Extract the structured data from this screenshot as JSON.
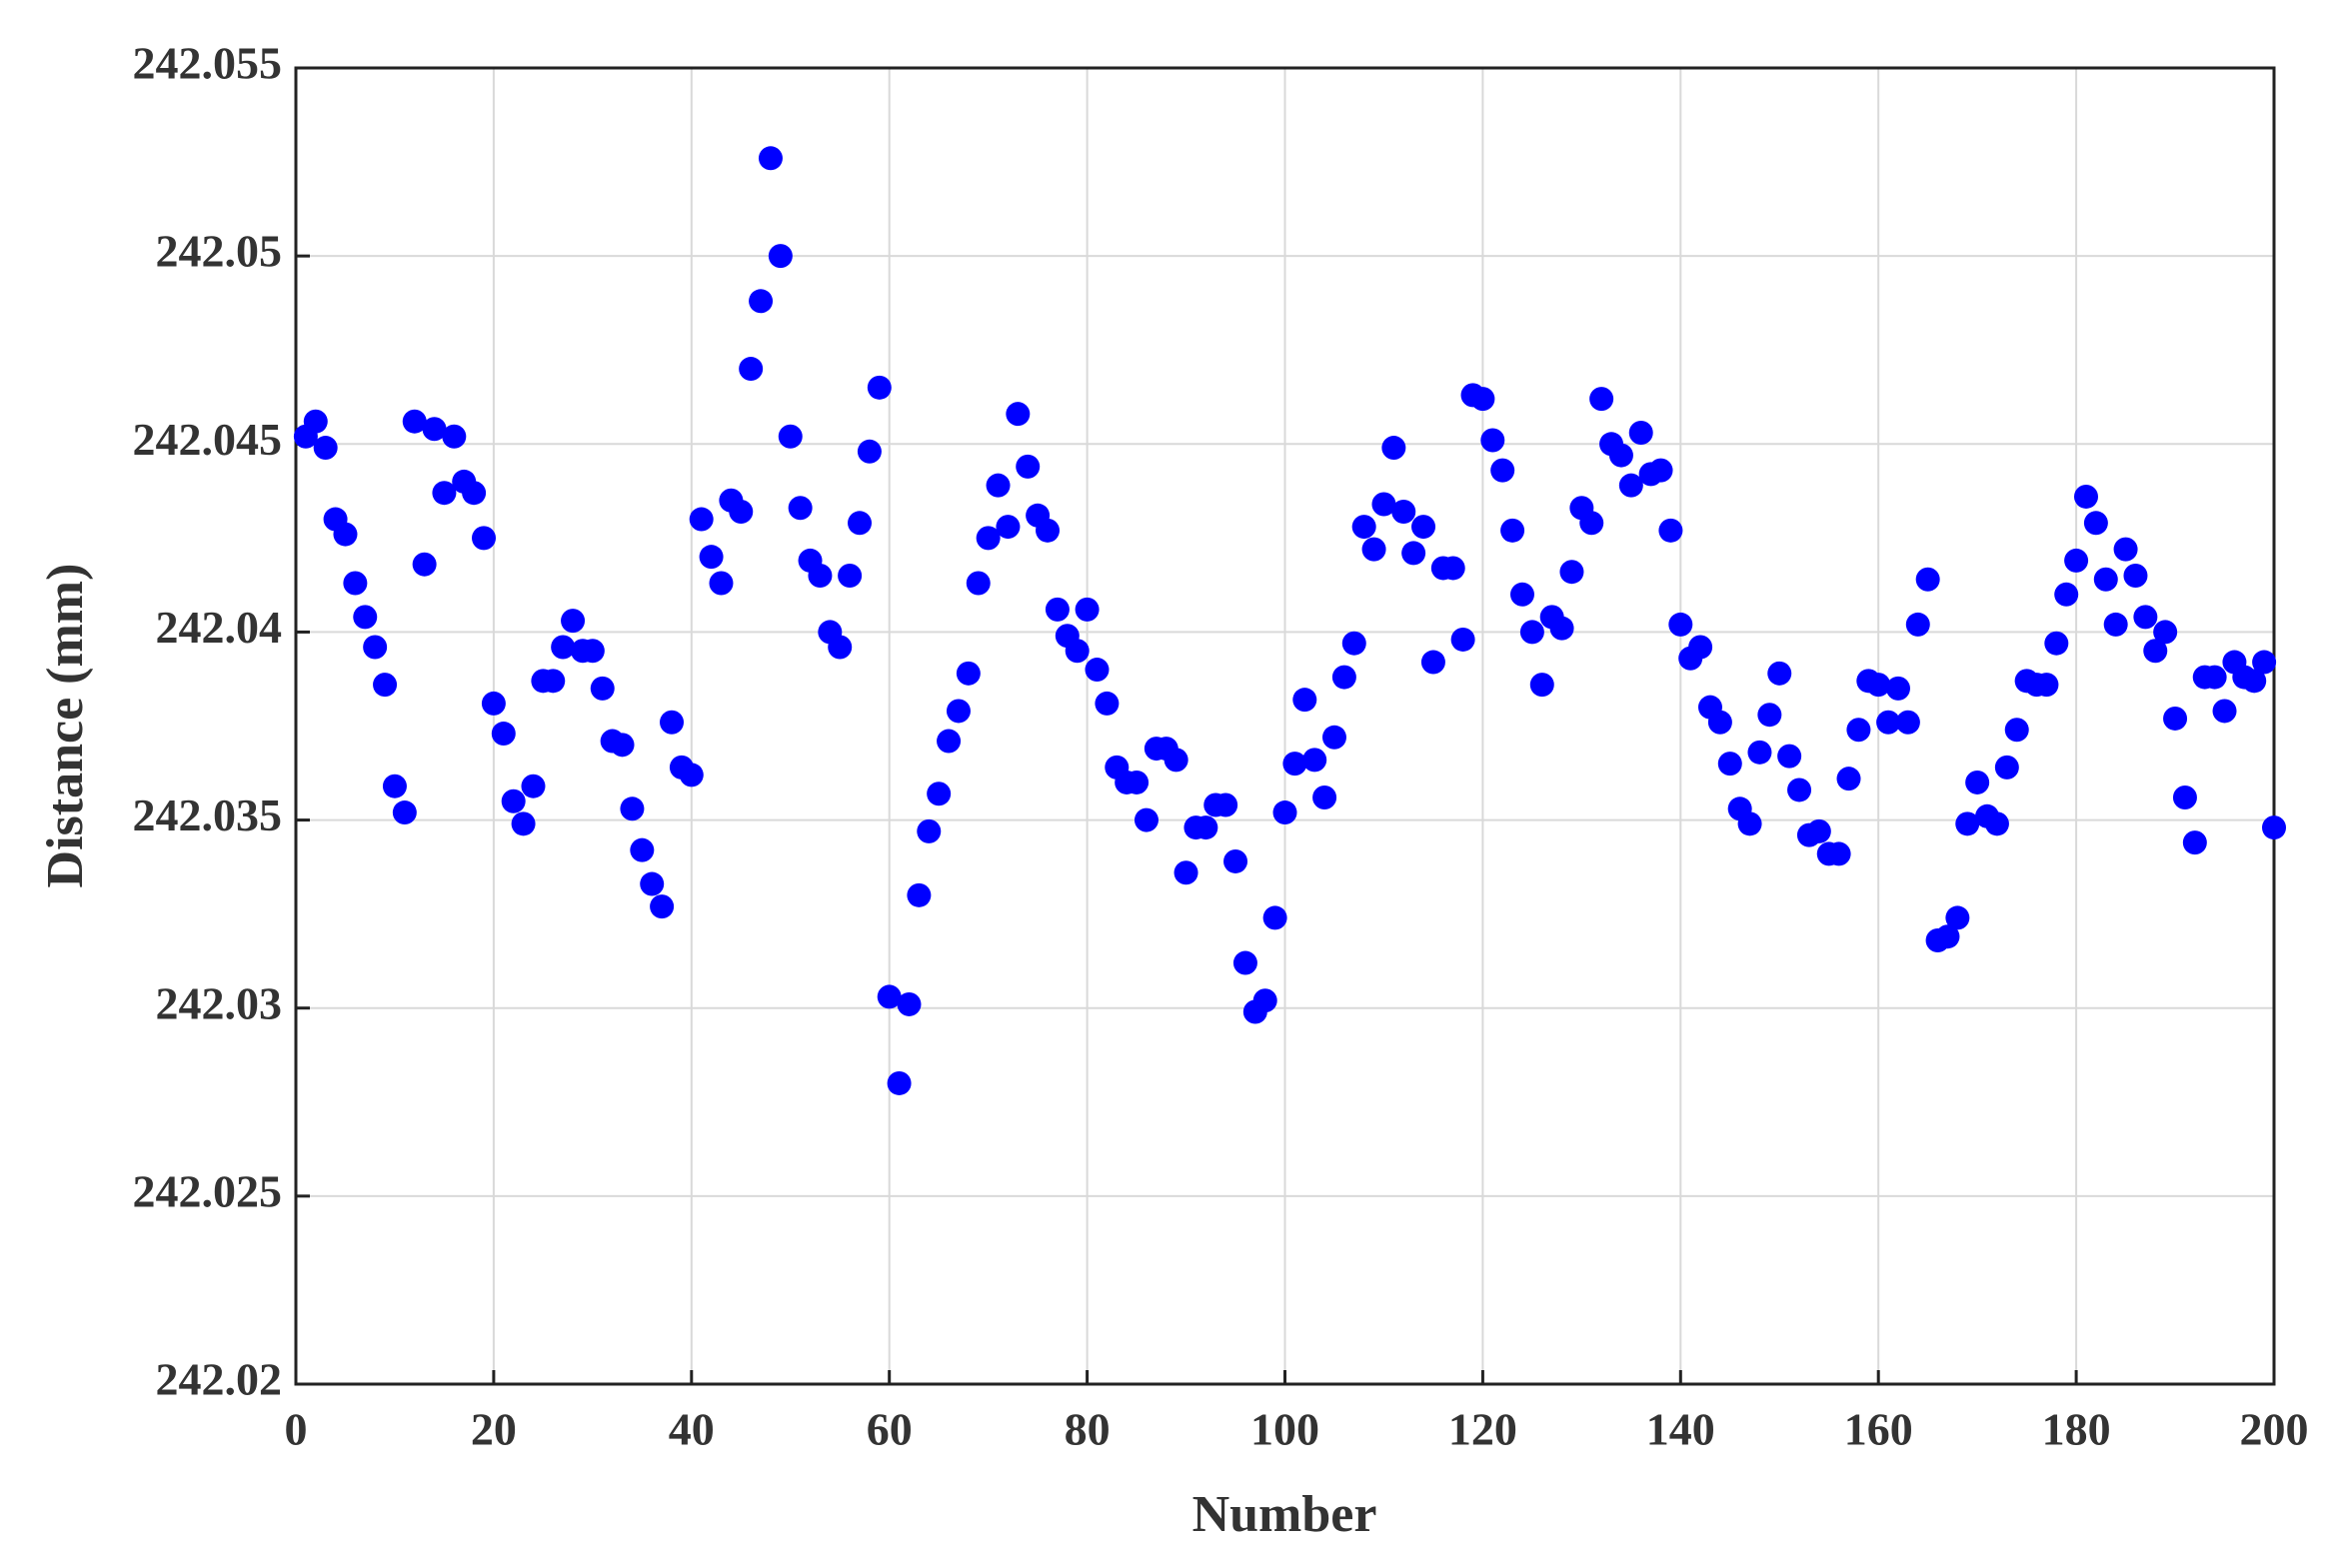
{
  "chart_data": {
    "type": "scatter",
    "xlabel": "Number",
    "ylabel": "Distance (mm)",
    "xlim": [
      0,
      200
    ],
    "xticks": [
      0,
      20,
      40,
      60,
      80,
      100,
      120,
      140,
      160,
      180,
      200
    ],
    "ylim": [
      242.02,
      242.055
    ],
    "yticks": [
      242.02,
      242.025,
      242.03,
      242.035,
      242.04,
      242.045,
      242.05,
      242.055
    ],
    "grid": true,
    "color": "#0000ff",
    "x": [
      1,
      2,
      3,
      4,
      5,
      6,
      7,
      8,
      9,
      10,
      11,
      12,
      13,
      14,
      15,
      16,
      17,
      18,
      19,
      20,
      21,
      22,
      23,
      24,
      25,
      26,
      27,
      28,
      29,
      30,
      31,
      32,
      33,
      34,
      35,
      36,
      37,
      38,
      39,
      40,
      41,
      42,
      43,
      44,
      45,
      46,
      47,
      48,
      49,
      50,
      51,
      52,
      53,
      54,
      55,
      56,
      57,
      58,
      59,
      60,
      61,
      62,
      63,
      64,
      65,
      66,
      67,
      68,
      69,
      70,
      71,
      72,
      73,
      74,
      75,
      76,
      77,
      78,
      79,
      80,
      81,
      82,
      83,
      84,
      85,
      86,
      87,
      88,
      89,
      90,
      91,
      92,
      93,
      94,
      95,
      96,
      97,
      98,
      99,
      100,
      101,
      102,
      103,
      104,
      105,
      106,
      107,
      108,
      109,
      110,
      111,
      112,
      113,
      114,
      115,
      116,
      117,
      118,
      119,
      120,
      121,
      122,
      123,
      124,
      125,
      126,
      127,
      128,
      129,
      130,
      131,
      132,
      133,
      134,
      135,
      136,
      137,
      138,
      139,
      140,
      141,
      142,
      143,
      144,
      145,
      146,
      147,
      148,
      149,
      150,
      151,
      152,
      153,
      154,
      155,
      156,
      157,
      158,
      159,
      160,
      161,
      162,
      163,
      164,
      165,
      166,
      167,
      168,
      169,
      170,
      171,
      172,
      173,
      174,
      175,
      176,
      177,
      178,
      179,
      180,
      181,
      182,
      183,
      184,
      185,
      186,
      187,
      188,
      189,
      190,
      191,
      192,
      193,
      194,
      195,
      196,
      197,
      198,
      199,
      200
    ],
    "values": [
      242.0452,
      242.0456,
      242.0449,
      242.043,
      242.0426,
      242.0413,
      242.0404,
      242.0396,
      242.0386,
      242.0359,
      242.0352,
      242.0456,
      242.0418,
      242.0454,
      242.0437,
      242.0452,
      242.044,
      242.0437,
      242.0425,
      242.0381,
      242.0373,
      242.0355,
      242.0349,
      242.0359,
      242.0387,
      242.0387,
      242.0396,
      242.0403,
      242.0395,
      242.0395,
      242.0385,
      242.0371,
      242.037,
      242.0353,
      242.0342,
      242.0333,
      242.0327,
      242.0376,
      242.0364,
      242.0362,
      242.043,
      242.042,
      242.0413,
      242.0435,
      242.0432,
      242.047,
      242.0488,
      242.0526,
      242.05,
      242.0452,
      242.0433,
      242.0419,
      242.0415,
      242.04,
      242.0396,
      242.0415,
      242.0429,
      242.0448,
      242.0465,
      242.0303,
      242.028,
      242.0301,
      242.033,
      242.0347,
      242.0357,
      242.0371,
      242.0379,
      242.0389,
      242.0413,
      242.0425,
      242.0439,
      242.0428,
      242.0458,
      242.0444,
      242.0431,
      242.0427,
      242.0406,
      242.0399,
      242.0395,
      242.0406,
      242.039,
      242.0381,
      242.0364,
      242.036,
      242.036,
      242.035,
      242.0369,
      242.0369,
      242.0366,
      242.0336,
      242.0348,
      242.0348,
      242.0354,
      242.0354,
      242.0339,
      242.0312,
      242.0299,
      242.0302,
      242.0324,
      242.0352,
      242.0365,
      242.0382,
      242.0366,
      242.0356,
      242.0372,
      242.0388,
      242.0397,
      242.0428,
      242.0422,
      242.0434,
      242.0449,
      242.0432,
      242.0421,
      242.0428,
      242.0392,
      242.0417,
      242.0417,
      242.0398,
      242.0463,
      242.0462,
      242.0451,
      242.0443,
      242.0427,
      242.041,
      242.04,
      242.0386,
      242.0404,
      242.0401,
      242.0416,
      242.0433,
      242.0429,
      242.0462,
      242.045,
      242.0447,
      242.0439,
      242.0453,
      242.0442,
      242.0443,
      242.0427,
      242.0402,
      242.0393,
      242.0396,
      242.038,
      242.0376,
      242.0365,
      242.0353,
      242.0349,
      242.0368,
      242.0378,
      242.0389,
      242.0367,
      242.0358,
      242.0346,
      242.0347,
      242.0341,
      242.0341,
      242.0361,
      242.0374,
      242.0387,
      242.0386,
      242.0376,
      242.0385,
      242.0376,
      242.0402,
      242.0414,
      242.0318,
      242.0319,
      242.0324,
      242.0349,
      242.036,
      242.0351,
      242.0349,
      242.0364,
      242.0374,
      242.0387,
      242.0386,
      242.0386,
      242.0397,
      242.041,
      242.0419,
      242.0436,
      242.0429,
      242.0414,
      242.0402,
      242.0422,
      242.0415,
      242.0404,
      242.0395,
      242.04,
      242.0377,
      242.0356,
      242.0344,
      242.0388,
      242.0388,
      242.0379,
      242.0392,
      242.0388,
      242.0387,
      242.0392,
      242.0348
    ]
  }
}
